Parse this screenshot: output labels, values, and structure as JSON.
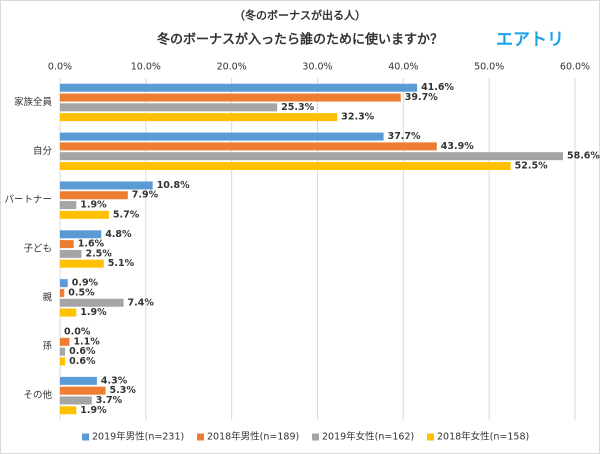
{
  "chart_data": {
    "type": "bar",
    "orientation": "horizontal",
    "subtitle": "（冬のボーナスが出る人）",
    "title": "冬のボーナスが入ったら誰のために使いますか？",
    "logo": "エアトリ",
    "categories": [
      "家族全員",
      "自分",
      "パートナー",
      "子ども",
      "親",
      "孫",
      "その他"
    ],
    "series": [
      {
        "name": "2019年男性(n=231)",
        "color": "#5b9bd5",
        "values": [
          41.6,
          37.7,
          10.8,
          4.8,
          0.9,
          0.0,
          4.3
        ],
        "value_labels": [
          "41.6%",
          "37.7%",
          "10.8%",
          "4.8%",
          "0.9%",
          "0.0%",
          "4.3%"
        ]
      },
      {
        "name": "2018年男性(n=189)",
        "color": "#ed7d31",
        "values": [
          39.7,
          43.9,
          7.9,
          1.6,
          0.5,
          1.1,
          5.3
        ],
        "value_labels": [
          "39.7%",
          "43.9%",
          "7.9%",
          "1.6%",
          "0.5%",
          "1.1%",
          "5.3%"
        ]
      },
      {
        "name": "2019年女性(n=162)",
        "color": "#a5a5a5",
        "values": [
          25.3,
          58.6,
          1.9,
          2.5,
          7.4,
          0.6,
          3.7
        ],
        "value_labels": [
          "25.3%",
          "58.6%",
          "1.9%",
          "2.5%",
          "7.4%",
          "0.6%",
          "3.7%"
        ]
      },
      {
        "name": "2018年女性(n=158)",
        "color": "#ffc000",
        "values": [
          32.3,
          52.5,
          5.7,
          5.1,
          1.9,
          0.6,
          1.9
        ],
        "value_labels": [
          "32.3%",
          "52.5%",
          "5.7%",
          "5.1%",
          "1.9%",
          "0.6%",
          "1.9%"
        ]
      }
    ],
    "xlim": [
      0,
      60
    ],
    "xticks": [
      {
        "value": 0,
        "label": "0.0%"
      },
      {
        "value": 10,
        "label": "10.0%"
      },
      {
        "value": 20,
        "label": "20.0%"
      },
      {
        "value": 30,
        "label": "30.0%"
      },
      {
        "value": 40,
        "label": "40.0%"
      },
      {
        "value": 50,
        "label": "50.0%"
      },
      {
        "value": 60,
        "label": "60.0%"
      }
    ],
    "grid": true,
    "legend": "bottom"
  }
}
